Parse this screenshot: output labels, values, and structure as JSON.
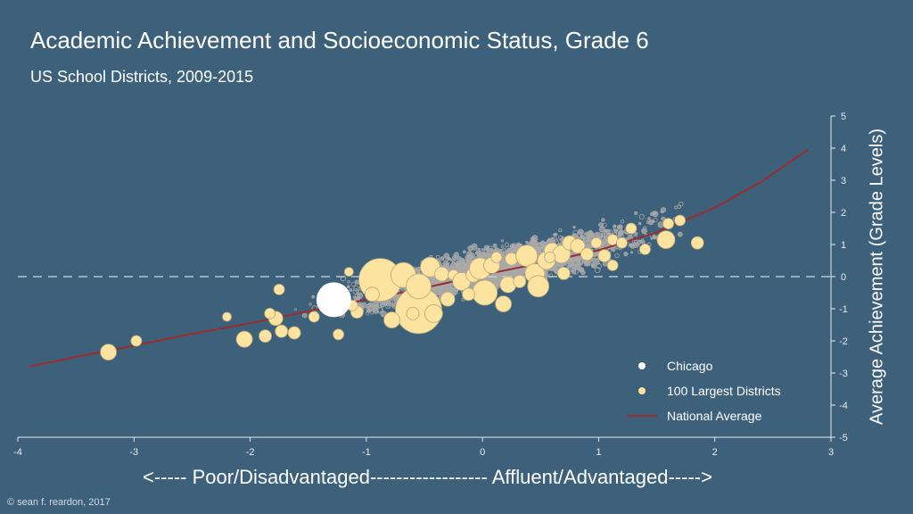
{
  "title": "Academic Achievement and Socioeconomic Status, Grade 6",
  "subtitle": "US School Districts, 2009-2015",
  "credit": "© sean f. reardon, 2017",
  "colors": {
    "background": "#3e617b",
    "districts": "#a9a9a9",
    "largest": "#fde3a0",
    "chicago": "#ffffff",
    "national_average": "#9b2d2d"
  },
  "chart_data": {
    "type": "scatter",
    "title": "Academic Achievement and Socioeconomic Status, Grade 6",
    "subtitle": "US School Districts, 2009-2015",
    "xlabel": "<----- Poor/Disadvantaged------------------ Affluent/Advantaged----->",
    "ylabel": "Average Achievement (Grade Levels)",
    "xlim": [
      -4,
      3
    ],
    "ylim": [
      -5,
      5
    ],
    "xticks": [
      "-4",
      "-3",
      "-2",
      "-1",
      "0",
      "1",
      "2",
      "3"
    ],
    "yticks": [
      "5",
      "4",
      "3",
      "2",
      "1",
      "0",
      "-1",
      "-2",
      "-3",
      "-4",
      "-5"
    ],
    "reference_line_y": 0,
    "legend": {
      "position": "bottom-right",
      "entries": [
        "Chicago",
        "100 Largest Districts",
        "National Average"
      ]
    },
    "series": [
      {
        "name": "Chicago",
        "points": [
          {
            "x": -1.28,
            "y": -0.72,
            "size": 19
          }
        ]
      },
      {
        "name": "100 Largest Districts",
        "points": [
          {
            "x": -3.22,
            "y": -2.35,
            "size": 9
          },
          {
            "x": -2.98,
            "y": -2.0,
            "size": 6
          },
          {
            "x": -2.05,
            "y": -1.95,
            "size": 9
          },
          {
            "x": -1.87,
            "y": -1.85,
            "size": 7
          },
          {
            "x": -1.78,
            "y": -1.3,
            "size": 8
          },
          {
            "x": -1.73,
            "y": -1.7,
            "size": 7
          },
          {
            "x": -1.62,
            "y": -1.75,
            "size": 7
          },
          {
            "x": -1.75,
            "y": -0.4,
            "size": 6
          },
          {
            "x": -1.83,
            "y": -1.15,
            "size": 6
          },
          {
            "x": -1.24,
            "y": -1.8,
            "size": 6
          },
          {
            "x": -1.08,
            "y": -1.1,
            "size": 7
          },
          {
            "x": -1.12,
            "y": -0.9,
            "size": 6
          },
          {
            "x": -0.88,
            "y": -0.1,
            "size": 24
          },
          {
            "x": -0.68,
            "y": 0.05,
            "size": 14
          },
          {
            "x": -0.55,
            "y": -1.05,
            "size": 26
          },
          {
            "x": -0.55,
            "y": -0.3,
            "size": 14
          },
          {
            "x": -0.45,
            "y": 0.3,
            "size": 11
          },
          {
            "x": -0.35,
            "y": 0.08,
            "size": 8
          },
          {
            "x": -0.78,
            "y": -1.35,
            "size": 9
          },
          {
            "x": -0.42,
            "y": -1.15,
            "size": 10
          },
          {
            "x": -0.6,
            "y": -1.15,
            "size": 7
          },
          {
            "x": -0.3,
            "y": -0.7,
            "size": 8
          },
          {
            "x": -0.25,
            "y": 0.05,
            "size": 6
          },
          {
            "x": -0.18,
            "y": -0.15,
            "size": 10
          },
          {
            "x": -0.08,
            "y": 0.05,
            "size": 8
          },
          {
            "x": -0.02,
            "y": 0.25,
            "size": 12
          },
          {
            "x": 0.02,
            "y": -0.5,
            "size": 14
          },
          {
            "x": 0.08,
            "y": 0.35,
            "size": 9
          },
          {
            "x": -0.12,
            "y": -0.55,
            "size": 7
          },
          {
            "x": 0.18,
            "y": -0.85,
            "size": 9
          },
          {
            "x": 0.22,
            "y": -0.25,
            "size": 9
          },
          {
            "x": 0.25,
            "y": 0.55,
            "size": 7
          },
          {
            "x": 0.32,
            "y": -0.15,
            "size": 7
          },
          {
            "x": 0.38,
            "y": 0.65,
            "size": 12
          },
          {
            "x": 0.45,
            "y": 0.1,
            "size": 11
          },
          {
            "x": 0.48,
            "y": -0.3,
            "size": 12
          },
          {
            "x": 0.55,
            "y": 0.5,
            "size": 10
          },
          {
            "x": 0.6,
            "y": 0.8,
            "size": 9
          },
          {
            "x": 0.68,
            "y": 0.7,
            "size": 10
          },
          {
            "x": 0.75,
            "y": 1.05,
            "size": 8
          },
          {
            "x": 0.82,
            "y": 0.95,
            "size": 8
          },
          {
            "x": 0.7,
            "y": 0.1,
            "size": 7
          },
          {
            "x": 0.9,
            "y": 0.7,
            "size": 7
          },
          {
            "x": 0.98,
            "y": 1.05,
            "size": 6
          },
          {
            "x": 1.05,
            "y": 0.65,
            "size": 7
          },
          {
            "x": 1.12,
            "y": 1.15,
            "size": 6
          },
          {
            "x": 1.2,
            "y": 1.05,
            "size": 6
          },
          {
            "x": 1.28,
            "y": 1.5,
            "size": 6
          },
          {
            "x": 1.12,
            "y": 0.35,
            "size": 6
          },
          {
            "x": 1.4,
            "y": 0.85,
            "size": 6
          },
          {
            "x": 1.58,
            "y": 1.15,
            "size": 10
          },
          {
            "x": 1.6,
            "y": 1.65,
            "size": 6
          },
          {
            "x": 1.7,
            "y": 1.75,
            "size": 6
          },
          {
            "x": 1.85,
            "y": 1.05,
            "size": 7
          },
          {
            "x": -2.2,
            "y": -1.25,
            "size": 5
          },
          {
            "x": -1.45,
            "y": -1.25,
            "size": 6
          },
          {
            "x": -1.15,
            "y": 0.15,
            "size": 5
          },
          {
            "x": -0.95,
            "y": -0.55,
            "size": 8
          },
          {
            "x": 0.12,
            "y": 0.6,
            "size": 6
          },
          {
            "x": 0.58,
            "y": 0.6,
            "size": 6
          }
        ]
      },
      {
        "name": "National Average",
        "line": [
          {
            "x": -3.9,
            "y": -2.8
          },
          {
            "x": -3.5,
            "y": -2.5
          },
          {
            "x": -3.0,
            "y": -2.15
          },
          {
            "x": -2.5,
            "y": -1.78
          },
          {
            "x": -2.0,
            "y": -1.45
          },
          {
            "x": -1.5,
            "y": -1.08
          },
          {
            "x": -1.0,
            "y": -0.72
          },
          {
            "x": -0.5,
            "y": -0.35
          },
          {
            "x": 0.0,
            "y": 0.05
          },
          {
            "x": 0.5,
            "y": 0.42
          },
          {
            "x": 1.0,
            "y": 0.82
          },
          {
            "x": 1.5,
            "y": 1.38
          },
          {
            "x": 2.0,
            "y": 2.15
          },
          {
            "x": 2.4,
            "y": 2.95
          },
          {
            "x": 2.8,
            "y": 3.95
          }
        ]
      }
    ]
  }
}
